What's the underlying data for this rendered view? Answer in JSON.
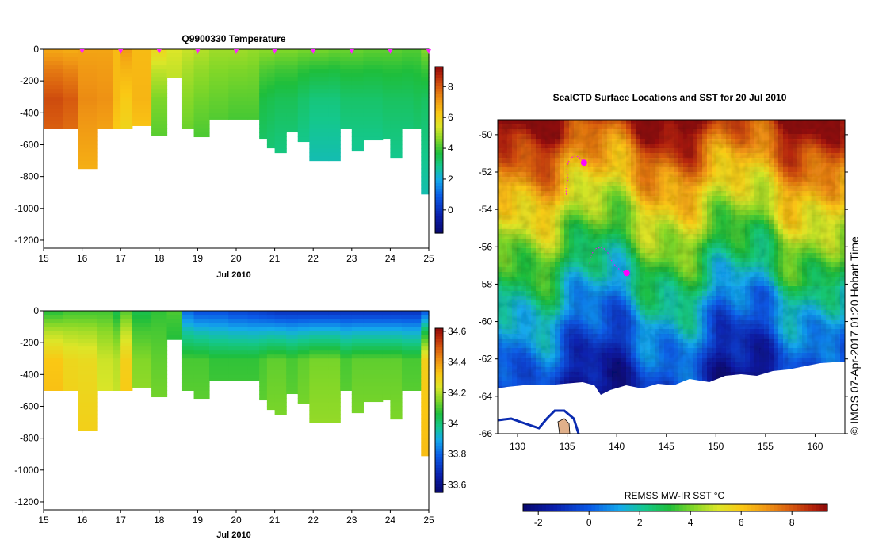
{
  "chart_data": [
    {
      "type": "heatmap",
      "title": "Q9900330  Temperature",
      "xlabel": "Jul 2010",
      "x_ticks": [
        "15",
        "16",
        "17",
        "18",
        "19",
        "20",
        "21",
        "22",
        "23",
        "24",
        "25"
      ],
      "ylim": [
        -1250,
        0
      ],
      "y_ticks": [
        "0",
        "-200",
        "-400",
        "-600",
        "-800",
        "-1000",
        "-1200"
      ],
      "colorbar": {
        "min": -1.5,
        "max": 9.3,
        "ticks": [
          "0",
          "2",
          "4",
          "6",
          "8"
        ],
        "tick_values": [
          0,
          2,
          4,
          6,
          8
        ]
      },
      "profile_markers_day": [
        16.0,
        17.0,
        18.0,
        19.0,
        20.0,
        21.0,
        22.0,
        23.0,
        24.0,
        25.0
      ],
      "profiles": [
        {
          "day": 15.0,
          "max_depth": 500,
          "surface": 6.9,
          "core": 8.2
        },
        {
          "day": 15.5,
          "max_depth": 500,
          "surface": 6.8,
          "core": 8.0
        },
        {
          "day": 15.9,
          "max_depth": 750,
          "surface": 6.9,
          "core": 7.3
        },
        {
          "day": 16.4,
          "max_depth": 500,
          "surface": 6.9,
          "core": 7.2
        },
        {
          "day": 16.8,
          "max_depth": 500,
          "surface": 6.5,
          "core": 6.5
        },
        {
          "day": 17.0,
          "max_depth": 500,
          "surface": 7.0,
          "core": 6.2
        },
        {
          "day": 17.3,
          "max_depth": 480,
          "surface": 6.5,
          "core": 6.6
        },
        {
          "day": 17.8,
          "max_depth": 540,
          "surface": 5.8,
          "core": 4.5
        },
        {
          "day": 18.2,
          "max_depth": 180,
          "surface": 5.4,
          "core": 5.0
        },
        {
          "day": 18.6,
          "max_depth": 500,
          "surface": 5.2,
          "core": 4.6
        },
        {
          "day": 18.9,
          "max_depth": 550,
          "surface": 5.0,
          "core": 4.4
        },
        {
          "day": 19.3,
          "max_depth": 440,
          "surface": 4.8,
          "core": 4.3
        },
        {
          "day": 19.8,
          "max_depth": 440,
          "surface": 4.8,
          "core": 4.2
        },
        {
          "day": 20.3,
          "max_depth": 440,
          "surface": 4.7,
          "core": 4.2
        },
        {
          "day": 20.6,
          "max_depth": 560,
          "surface": 4.6,
          "core": 3.6
        },
        {
          "day": 20.8,
          "max_depth": 620,
          "surface": 4.6,
          "core": 3.5
        },
        {
          "day": 21.0,
          "max_depth": 650,
          "surface": 4.5,
          "core": 3.4
        },
        {
          "day": 21.3,
          "max_depth": 520,
          "surface": 4.5,
          "core": 3.4
        },
        {
          "day": 21.6,
          "max_depth": 580,
          "surface": 4.4,
          "core": 3.2
        },
        {
          "day": 21.9,
          "max_depth": 700,
          "surface": 4.4,
          "core": 3.0
        },
        {
          "day": 22.4,
          "max_depth": 700,
          "surface": 4.3,
          "core": 3.0
        },
        {
          "day": 22.7,
          "max_depth": 500,
          "surface": 4.3,
          "core": 3.2
        },
        {
          "day": 23.0,
          "max_depth": 640,
          "surface": 4.3,
          "core": 3.2
        },
        {
          "day": 23.3,
          "max_depth": 570,
          "surface": 4.2,
          "core": 3.2
        },
        {
          "day": 23.8,
          "max_depth": 560,
          "surface": 4.2,
          "core": 3.3
        },
        {
          "day": 24.0,
          "max_depth": 680,
          "surface": 4.2,
          "core": 3.3
        },
        {
          "day": 24.3,
          "max_depth": 500,
          "surface": 4.1,
          "core": 3.3
        },
        {
          "day": 24.6,
          "max_depth": 500,
          "surface": 4.1,
          "core": 3.4
        },
        {
          "day": 24.8,
          "max_depth": 910,
          "surface": 4.5,
          "core": 3.3
        }
      ]
    },
    {
      "type": "heatmap",
      "title": "",
      "xlabel": "Jul 2010",
      "x_ticks": [
        "15",
        "16",
        "17",
        "18",
        "19",
        "20",
        "21",
        "22",
        "23",
        "24",
        "25"
      ],
      "ylim": [
        -1250,
        0
      ],
      "y_ticks": [
        "0",
        "-200",
        "-400",
        "-600",
        "-800",
        "-1000",
        "-1200"
      ],
      "colorbar": {
        "min": 33.55,
        "max": 34.62,
        "ticks": [
          "33.6",
          "33.8",
          "34",
          "34.2",
          "34.4",
          "34.6"
        ],
        "tick_values": [
          33.6,
          33.8,
          34.0,
          34.2,
          34.4,
          34.6
        ]
      },
      "profiles": [
        {
          "day": 15.0,
          "max_depth": 500,
          "surface": 34.08,
          "core": 34.32
        },
        {
          "day": 15.5,
          "max_depth": 500,
          "surface": 34.1,
          "core": 34.28
        },
        {
          "day": 15.9,
          "max_depth": 750,
          "surface": 34.1,
          "core": 34.27
        },
        {
          "day": 16.4,
          "max_depth": 500,
          "surface": 34.1,
          "core": 34.22
        },
        {
          "day": 16.8,
          "max_depth": 500,
          "surface": 34.05,
          "core": 34.2
        },
        {
          "day": 17.0,
          "max_depth": 500,
          "surface": 34.12,
          "core": 34.3
        },
        {
          "day": 17.3,
          "max_depth": 480,
          "surface": 34.05,
          "core": 34.15
        },
        {
          "day": 17.8,
          "max_depth": 540,
          "surface": 34.08,
          "core": 34.12
        },
        {
          "day": 18.2,
          "max_depth": 180,
          "surface": 34.1,
          "core": 34.05
        },
        {
          "day": 18.6,
          "max_depth": 500,
          "surface": 33.82,
          "core": 34.1
        },
        {
          "day": 18.9,
          "max_depth": 550,
          "surface": 33.78,
          "core": 34.1
        },
        {
          "day": 19.3,
          "max_depth": 440,
          "surface": 33.78,
          "core": 34.08
        },
        {
          "day": 19.8,
          "max_depth": 440,
          "surface": 33.76,
          "core": 34.08
        },
        {
          "day": 20.3,
          "max_depth": 440,
          "surface": 33.75,
          "core": 34.08
        },
        {
          "day": 20.6,
          "max_depth": 560,
          "surface": 33.74,
          "core": 34.1
        },
        {
          "day": 20.8,
          "max_depth": 620,
          "surface": 33.73,
          "core": 34.12
        },
        {
          "day": 21.0,
          "max_depth": 650,
          "surface": 33.72,
          "core": 34.12
        },
        {
          "day": 21.3,
          "max_depth": 520,
          "surface": 33.72,
          "core": 34.1
        },
        {
          "day": 21.6,
          "max_depth": 580,
          "surface": 33.72,
          "core": 34.12
        },
        {
          "day": 21.9,
          "max_depth": 700,
          "surface": 33.72,
          "core": 34.14
        },
        {
          "day": 22.4,
          "max_depth": 700,
          "surface": 33.72,
          "core": 34.14
        },
        {
          "day": 22.7,
          "max_depth": 500,
          "surface": 33.72,
          "core": 34.1
        },
        {
          "day": 23.0,
          "max_depth": 640,
          "surface": 33.72,
          "core": 34.12
        },
        {
          "day": 23.3,
          "max_depth": 570,
          "surface": 33.72,
          "core": 34.12
        },
        {
          "day": 23.8,
          "max_depth": 560,
          "surface": 33.72,
          "core": 34.12
        },
        {
          "day": 24.0,
          "max_depth": 680,
          "surface": 33.72,
          "core": 34.12
        },
        {
          "day": 24.3,
          "max_depth": 500,
          "surface": 33.72,
          "core": 34.1
        },
        {
          "day": 24.6,
          "max_depth": 500,
          "surface": 33.72,
          "core": 34.1
        },
        {
          "day": 24.8,
          "max_depth": 910,
          "surface": 33.8,
          "core": 34.3
        }
      ]
    },
    {
      "type": "heatmap",
      "title": "SealCTD Surface Locations and SST for 20 Jul 2010",
      "xlabel": "",
      "ylabel": "",
      "xlim": [
        128,
        163
      ],
      "ylim": [
        -66,
        -49.2
      ],
      "x_ticks": [
        "130",
        "135",
        "140",
        "145",
        "150",
        "155",
        "160"
      ],
      "x_tick_values": [
        130,
        135,
        140,
        145,
        150,
        155,
        160
      ],
      "y_ticks": [
        "-50",
        "-52",
        "-54",
        "-56",
        "-58",
        "-60",
        "-62",
        "-64",
        "-66"
      ],
      "y_tick_values": [
        -50,
        -52,
        -54,
        -56,
        -58,
        -60,
        -62,
        -64,
        -66
      ],
      "colorbar": {
        "label": "REMSS MW-IR SST °C",
        "min": -2.6,
        "max": 9.4,
        "ticks": [
          "-2",
          "0",
          "2",
          "4",
          "6",
          "8"
        ],
        "tick_values": [
          -2,
          0,
          2,
          4,
          6,
          8
        ]
      },
      "credit": "© IMOS 07-Apr-2017 01:20 Hobart Time",
      "seal_locations": [
        {
          "lon": 136.7,
          "lat": -51.5
        },
        {
          "lon": 141.0,
          "lat": -57.4
        }
      ]
    }
  ],
  "colors": {
    "profile_marker": "#ff22ff",
    "land": "#e0b08a",
    "ice": "#ffffff",
    "seal_track": "#ff00ff"
  }
}
